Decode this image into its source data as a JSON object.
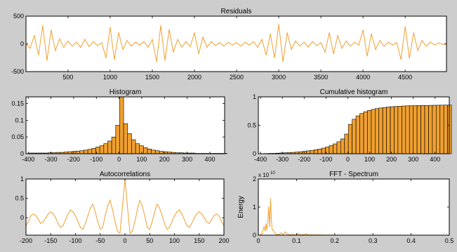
{
  "colors": {
    "figure_bg": "#cdcdcd",
    "axes_bg": "#ffffff",
    "line": "#f0a030",
    "bar_fill": "#f0a030",
    "bar_edge": "#000000"
  },
  "chart_data": [
    {
      "id": "residuals",
      "type": "line",
      "title": "Residuals",
      "xlabel": "",
      "ylabel": "",
      "xlim": [
        1,
        4990
      ],
      "ylim": [
        -500,
        500
      ],
      "xticks": [
        500,
        1000,
        1500,
        2000,
        2500,
        3000,
        3500,
        4000,
        4500
      ],
      "yticks": [
        -500,
        0,
        500
      ],
      "series": [
        {
          "x": [
            1,
            50,
            100,
            150,
            200,
            250,
            300,
            350,
            400,
            450,
            500,
            550,
            600,
            650,
            700,
            750,
            800,
            850,
            900,
            950,
            1000,
            1050,
            1100,
            1150,
            1200,
            1250,
            1300,
            1350,
            1400,
            1450,
            1500,
            1550,
            1600,
            1650,
            1700,
            1750,
            1800,
            1850,
            1900,
            1950,
            2000,
            2050,
            2100,
            2150,
            2200,
            2250,
            2300,
            2350,
            2400,
            2450,
            2500,
            2550,
            2600,
            2650,
            2700,
            2750,
            2800,
            2850,
            2900,
            2950,
            3000,
            3050,
            3100,
            3150,
            3200,
            3250,
            3300,
            3350,
            3400,
            3450,
            3500,
            3550,
            3600,
            3650,
            3700,
            3750,
            3800,
            3850,
            3900,
            3950,
            4000,
            4050,
            4100,
            4150,
            4200,
            4250,
            4300,
            4350,
            4400,
            4450,
            4500,
            4550,
            4600,
            4650,
            4700,
            4750,
            4800,
            4850,
            4900,
            4950,
            4990
          ],
          "y": [
            0,
            -80,
            150,
            -200,
            330,
            -300,
            250,
            -120,
            90,
            -60,
            50,
            -40,
            30,
            -60,
            80,
            -50,
            40,
            -30,
            20,
            -250,
            300,
            -280,
            200,
            -100,
            60,
            -40,
            30,
            -20,
            40,
            -60,
            80,
            -320,
            330,
            -300,
            260,
            -150,
            80,
            -60,
            40,
            -50,
            200,
            -180,
            120,
            -60,
            40,
            -30,
            20,
            -40,
            30,
            -20,
            20,
            -40,
            30,
            -20,
            40,
            -60,
            80,
            -200,
            180,
            -250,
            350,
            -320,
            200,
            -100,
            50,
            -40,
            30,
            -60,
            40,
            -30,
            20,
            -150,
            200,
            -180,
            150,
            -80,
            50,
            -40,
            30,
            -20,
            250,
            -220,
            180,
            -100,
            60,
            -40,
            30,
            -20,
            20,
            -280,
            310,
            -260,
            200,
            -120,
            60,
            -40,
            30,
            -20,
            20,
            -10,
            0
          ]
        }
      ]
    },
    {
      "id": "histogram",
      "type": "bar",
      "title": "Histogram",
      "xlabel": "",
      "ylabel": "",
      "xlim": [
        -410,
        465
      ],
      "ylim": [
        0,
        0.17
      ],
      "xticks": [
        -400,
        -300,
        -200,
        -100,
        0,
        100,
        200,
        300,
        400
      ],
      "yticks": [
        0,
        0.05,
        0.1,
        0.15
      ],
      "bin_edges_start": -400,
      "bin_width": 17.5,
      "values": [
        0.002,
        0.002,
        0.002,
        0.002,
        0.002,
        0.003,
        0.003,
        0.004,
        0.004,
        0.005,
        0.006,
        0.007,
        0.008,
        0.009,
        0.011,
        0.013,
        0.016,
        0.02,
        0.024,
        0.03,
        0.038,
        0.05,
        0.085,
        0.17,
        0.09,
        0.06,
        0.042,
        0.03,
        0.024,
        0.018,
        0.014,
        0.011,
        0.009,
        0.007,
        0.006,
        0.005,
        0.004,
        0.003,
        0.003,
        0.002,
        0.002,
        0.002,
        0.001,
        0.001,
        0.001,
        0.001,
        0.001,
        0.001,
        0.001,
        0.001
      ]
    },
    {
      "id": "cumulative",
      "type": "bar",
      "title": "Cumulative histogram",
      "xlabel": "",
      "ylabel": "",
      "xlim": [
        -410,
        465
      ],
      "ylim": [
        0,
        1
      ],
      "xticks": [
        -400,
        -300,
        -200,
        -100,
        0,
        100,
        200,
        300,
        400
      ],
      "yticks": [
        0,
        0.5,
        1
      ],
      "bin_edges_start": -400,
      "bin_width": 17.5,
      "values": [
        0.002,
        0.004,
        0.006,
        0.008,
        0.01,
        0.013,
        0.016,
        0.02,
        0.024,
        0.029,
        0.035,
        0.042,
        0.05,
        0.059,
        0.07,
        0.083,
        0.099,
        0.119,
        0.143,
        0.173,
        0.211,
        0.261,
        0.346,
        0.516,
        0.606,
        0.666,
        0.708,
        0.738,
        0.762,
        0.78,
        0.794,
        0.805,
        0.814,
        0.821,
        0.827,
        0.832,
        0.836,
        0.839,
        0.842,
        0.844,
        0.846,
        0.848,
        0.849,
        0.85,
        0.851,
        0.852,
        0.853,
        0.854,
        0.855,
        0.856
      ]
    },
    {
      "id": "autocorrelations",
      "type": "line",
      "title": "Autocorrelations",
      "xlabel": "",
      "ylabel": "",
      "xlim": [
        -200,
        200
      ],
      "ylim": [
        -0.45,
        1
      ],
      "xticks": [
        -200,
        -150,
        -100,
        -50,
        0,
        50,
        100,
        150,
        200
      ],
      "yticks": [
        0,
        0.5,
        1
      ],
      "series": [
        {
          "x": [
            -200,
            -195,
            -190,
            -185,
            -180,
            -175,
            -170,
            -165,
            -160,
            -155,
            -150,
            -145,
            -140,
            -135,
            -130,
            -125,
            -120,
            -115,
            -110,
            -105,
            -100,
            -95,
            -90,
            -85,
            -80,
            -75,
            -70,
            -65,
            -60,
            -55,
            -50,
            -45,
            -40,
            -35,
            -30,
            -25,
            -20,
            -15,
            -10,
            -5,
            0,
            5,
            10,
            15,
            20,
            25,
            30,
            35,
            40,
            45,
            50,
            55,
            60,
            65,
            70,
            75,
            80,
            85,
            90,
            95,
            100,
            105,
            110,
            115,
            120,
            125,
            130,
            135,
            140,
            145,
            150,
            155,
            160,
            165,
            170,
            175,
            180,
            185,
            190,
            195,
            200
          ],
          "y": [
            -0.2,
            -0.1,
            0.05,
            0.1,
            0.05,
            -0.05,
            -0.15,
            -0.1,
            0.0,
            0.1,
            0.15,
            0.1,
            0.0,
            -0.15,
            -0.25,
            -0.2,
            -0.05,
            0.1,
            0.2,
            0.15,
            0.05,
            -0.1,
            -0.25,
            -0.3,
            -0.15,
            0.05,
            0.25,
            0.35,
            0.15,
            -0.1,
            -0.3,
            -0.25,
            0.05,
            0.3,
            0.45,
            0.2,
            -0.1,
            -0.35,
            -0.4,
            0.3,
            0.98,
            0.3,
            -0.4,
            -0.35,
            -0.1,
            0.2,
            0.45,
            0.3,
            0.05,
            -0.25,
            -0.3,
            -0.1,
            0.15,
            0.35,
            0.25,
            0.05,
            -0.15,
            -0.3,
            -0.25,
            -0.1,
            0.05,
            0.15,
            0.2,
            0.1,
            -0.05,
            -0.2,
            -0.25,
            -0.15,
            0.0,
            0.1,
            0.15,
            0.1,
            0.0,
            -0.1,
            -0.15,
            -0.05,
            0.05,
            0.1,
            0.05,
            -0.1,
            -0.2
          ]
        }
      ]
    },
    {
      "id": "fft",
      "type": "line",
      "title": "FFT - Spectrum",
      "xlabel": "",
      "ylabel": "Energy",
      "xlim": [
        0,
        0.5
      ],
      "ylim": [
        0,
        2
      ],
      "xticks": [
        0,
        0.1,
        0.2,
        0.3,
        0.4,
        0.5
      ],
      "yticks": [
        0,
        1,
        2
      ],
      "y_scale_label": "x 10",
      "y_scale_exponent": "10",
      "series": [
        {
          "x": [
            0.0,
            0.005,
            0.01,
            0.015,
            0.018,
            0.02,
            0.022,
            0.025,
            0.027,
            0.03,
            0.032,
            0.034,
            0.036,
            0.04,
            0.045,
            0.05,
            0.055,
            0.06,
            0.065,
            0.07,
            0.075,
            0.08,
            0.09,
            0.1,
            0.105,
            0.11,
            0.12,
            0.125,
            0.13,
            0.15,
            0.2,
            0.3,
            0.4,
            0.5
          ],
          "y": [
            0.0,
            0.02,
            0.05,
            0.3,
            0.15,
            0.4,
            0.2,
            0.5,
            1.0,
            0.3,
            1.3,
            0.6,
            0.2,
            0.15,
            0.05,
            0.02,
            0.03,
            0.08,
            0.01,
            0.12,
            0.05,
            0.01,
            0.02,
            0.01,
            0.06,
            0.01,
            0.02,
            0.05,
            0.01,
            0.01,
            0.0,
            0.0,
            0.0,
            0.0
          ]
        }
      ]
    }
  ]
}
